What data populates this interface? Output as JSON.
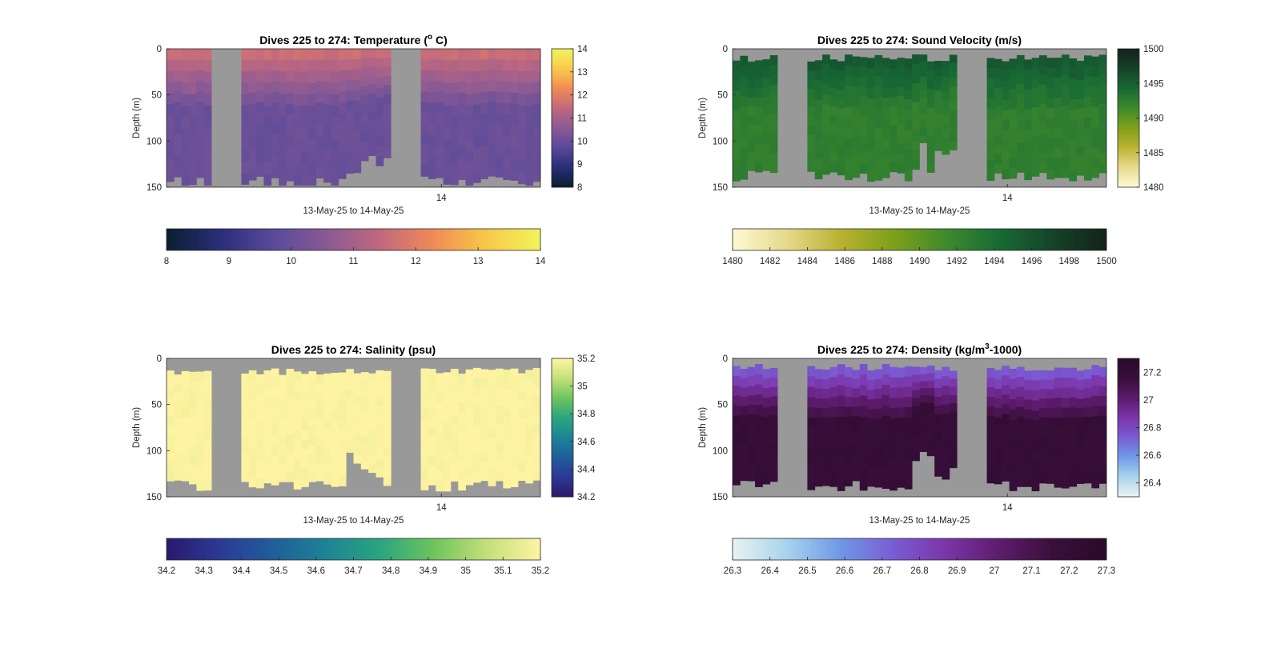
{
  "chart_data": [
    {
      "type": "heatmap",
      "title_prefix": "Dives 225 to 274: Temperature (",
      "title_sup": "o",
      "title_suffix": " C)",
      "xlabel": "13-May-25 to 14-May-25",
      "ylabel": "Depth (m)",
      "x_ticks": [
        "14"
      ],
      "y_ticks": [
        0,
        50,
        100,
        150
      ],
      "ylim": [
        0,
        150
      ],
      "clim": [
        8,
        14
      ],
      "colormap": [
        "#0b1f33",
        "#2a2f7a",
        "#5a4a9a",
        "#8a5a94",
        "#c0687f",
        "#f08a55",
        "#f8c84a",
        "#f2f25a"
      ],
      "side_colorbar_ticks": [
        "14",
        "13",
        "12",
        "11",
        "10",
        "9",
        "8"
      ],
      "bottom_colorbar_ticks": [
        "8",
        "9",
        "10",
        "11",
        "12",
        "13",
        "14"
      ],
      "surface_value": 11.6,
      "deep_value": 10.0
    },
    {
      "type": "heatmap",
      "title_prefix": "Dives 225 to 274: Sound Velocity (m/s)",
      "title_sup": "",
      "title_suffix": "",
      "xlabel": "13-May-25 to 14-May-25",
      "ylabel": "Depth (m)",
      "x_ticks": [
        "14"
      ],
      "y_ticks": [
        0,
        50,
        100,
        150
      ],
      "ylim": [
        0,
        150
      ],
      "clim": [
        1480,
        1500
      ],
      "colormap": [
        "#fdf8d2",
        "#e6d98a",
        "#b8b232",
        "#7fa01a",
        "#3f8a2c",
        "#186a35",
        "#15442a",
        "#13231b"
      ],
      "side_colorbar_ticks": [
        "1500",
        "1495",
        "1490",
        "1485",
        "1480"
      ],
      "bottom_colorbar_ticks": [
        "1480",
        "1482",
        "1484",
        "1486",
        "1488",
        "1490",
        "1492",
        "1494",
        "1496",
        "1498",
        "1500"
      ],
      "surface_value": 1495.5,
      "deep_value": 1492.5
    },
    {
      "type": "heatmap",
      "title_prefix": "Dives 225 to 274: Salinity (psu)",
      "title_sup": "",
      "title_suffix": "",
      "xlabel": "13-May-25 to 14-May-25",
      "ylabel": "Depth (m)",
      "x_ticks": [
        "14"
      ],
      "y_ticks": [
        0,
        50,
        100,
        150
      ],
      "ylim": [
        0,
        150
      ],
      "clim": [
        34.2,
        35.2
      ],
      "colormap": [
        "#2a1a6e",
        "#2c3a96",
        "#1f5f9a",
        "#1d8496",
        "#2aa57f",
        "#6cc45d",
        "#c2df78",
        "#fdf3a2"
      ],
      "side_colorbar_ticks": [
        "35.2",
        "35",
        "34.8",
        "34.6",
        "34.4",
        "34.2"
      ],
      "bottom_colorbar_ticks": [
        "34.2",
        "34.3",
        "34.4",
        "34.5",
        "34.6",
        "34.7",
        "34.8",
        "34.9",
        "35",
        "35.1",
        "35.2"
      ],
      "surface_value": 35.2,
      "deep_value": 35.2
    },
    {
      "type": "heatmap",
      "title_prefix": "Dives 225 to 274: Density (kg/m",
      "title_sup": "3",
      "title_suffix": "-1000)",
      "xlabel": "13-May-25 to 14-May-25",
      "ylabel": "Depth (m)",
      "x_ticks": [
        "14"
      ],
      "y_ticks": [
        0,
        50,
        100,
        150
      ],
      "ylim": [
        0,
        150
      ],
      "clim": [
        26.3,
        27.3
      ],
      "colormap": [
        "#e6f2f3",
        "#a7d2ec",
        "#6f99e6",
        "#7a5cd4",
        "#7b35a8",
        "#5e1c6e",
        "#3a0f3c",
        "#2a0a2a"
      ],
      "side_colorbar_ticks": [
        "27.2",
        "27",
        "26.8",
        "26.6",
        "26.4"
      ],
      "bottom_colorbar_ticks": [
        "26.3",
        "26.4",
        "26.5",
        "26.6",
        "26.7",
        "26.8",
        "26.9",
        "27",
        "27.1",
        "27.2",
        "27.3"
      ],
      "surface_value": 26.75,
      "deep_value": 27.2
    }
  ],
  "no_data_color": "#999999"
}
